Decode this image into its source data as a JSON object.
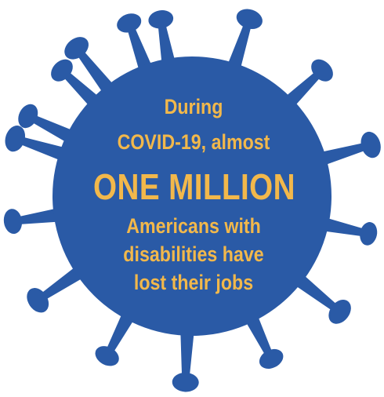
{
  "graphic": {
    "icon": "coronavirus-icon",
    "virus_color": "#2a5aa6",
    "text_color": "#f2b84b"
  },
  "message": {
    "line_1": "During",
    "line_2": "COVID-19, almost",
    "line_3": "ONE MILLION",
    "line_4": "Americans with",
    "line_5": "disabilities have",
    "line_6": "lost their jobs"
  }
}
